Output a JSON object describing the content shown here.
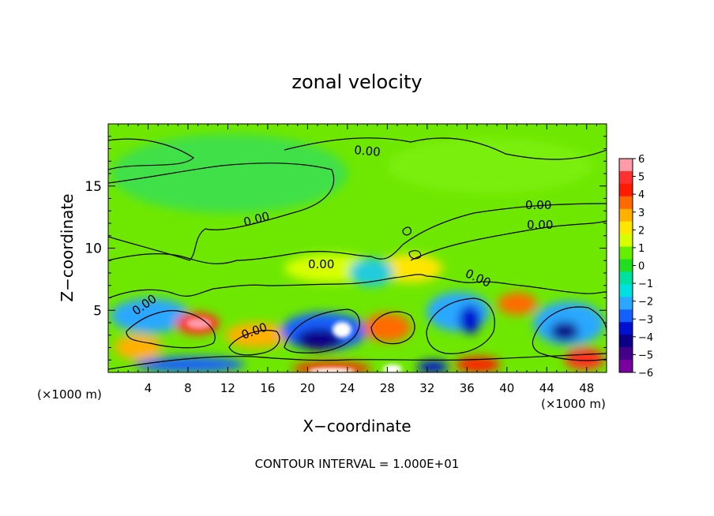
{
  "chart_data": {
    "type": "heatmap",
    "title": "zonal velocity",
    "xlabel": "X−coordinate",
    "ylabel": "Z−coordinate",
    "x_units_left": "(×1000 m)",
    "x_units_right": "(×1000 m)",
    "xlim": [
      0,
      50
    ],
    "ylim": [
      0,
      20
    ],
    "x_ticks": [
      4,
      8,
      12,
      16,
      20,
      24,
      28,
      32,
      36,
      40,
      44,
      48
    ],
    "x_tick_labels": [
      "4",
      "8",
      "12",
      "16",
      "20",
      "24",
      "28",
      "32",
      "36",
      "40",
      "44",
      "48"
    ],
    "y_ticks": [
      5,
      10,
      15
    ],
    "y_tick_labels": [
      "5",
      "10",
      "15"
    ],
    "colorbar": {
      "range": [
        -6,
        6
      ],
      "labels": [
        "6",
        "5",
        "4",
        "3",
        "2",
        "1",
        "0",
        "−1",
        "−2",
        "−3",
        "−4",
        "−5",
        "−6"
      ],
      "colors": [
        "#ff9aa8",
        "#ff3030",
        "#ff1a00",
        "#ff6a00",
        "#ffb000",
        "#ffe600",
        "#d8ff00",
        "#66ee00",
        "#22dd22",
        "#00e0a0",
        "#00e0e0",
        "#2aa8ff",
        "#1460ff",
        "#0010d0",
        "#0c0088",
        "#440088",
        "#7a00a0"
      ]
    },
    "contour_labels": [
      "0.00",
      "0.00",
      "0.00",
      "0.00",
      "0.00",
      "0.00",
      "0.00",
      "0.00"
    ],
    "footnote": "CONTOUR INTERVAL = 1.000E+01"
  }
}
